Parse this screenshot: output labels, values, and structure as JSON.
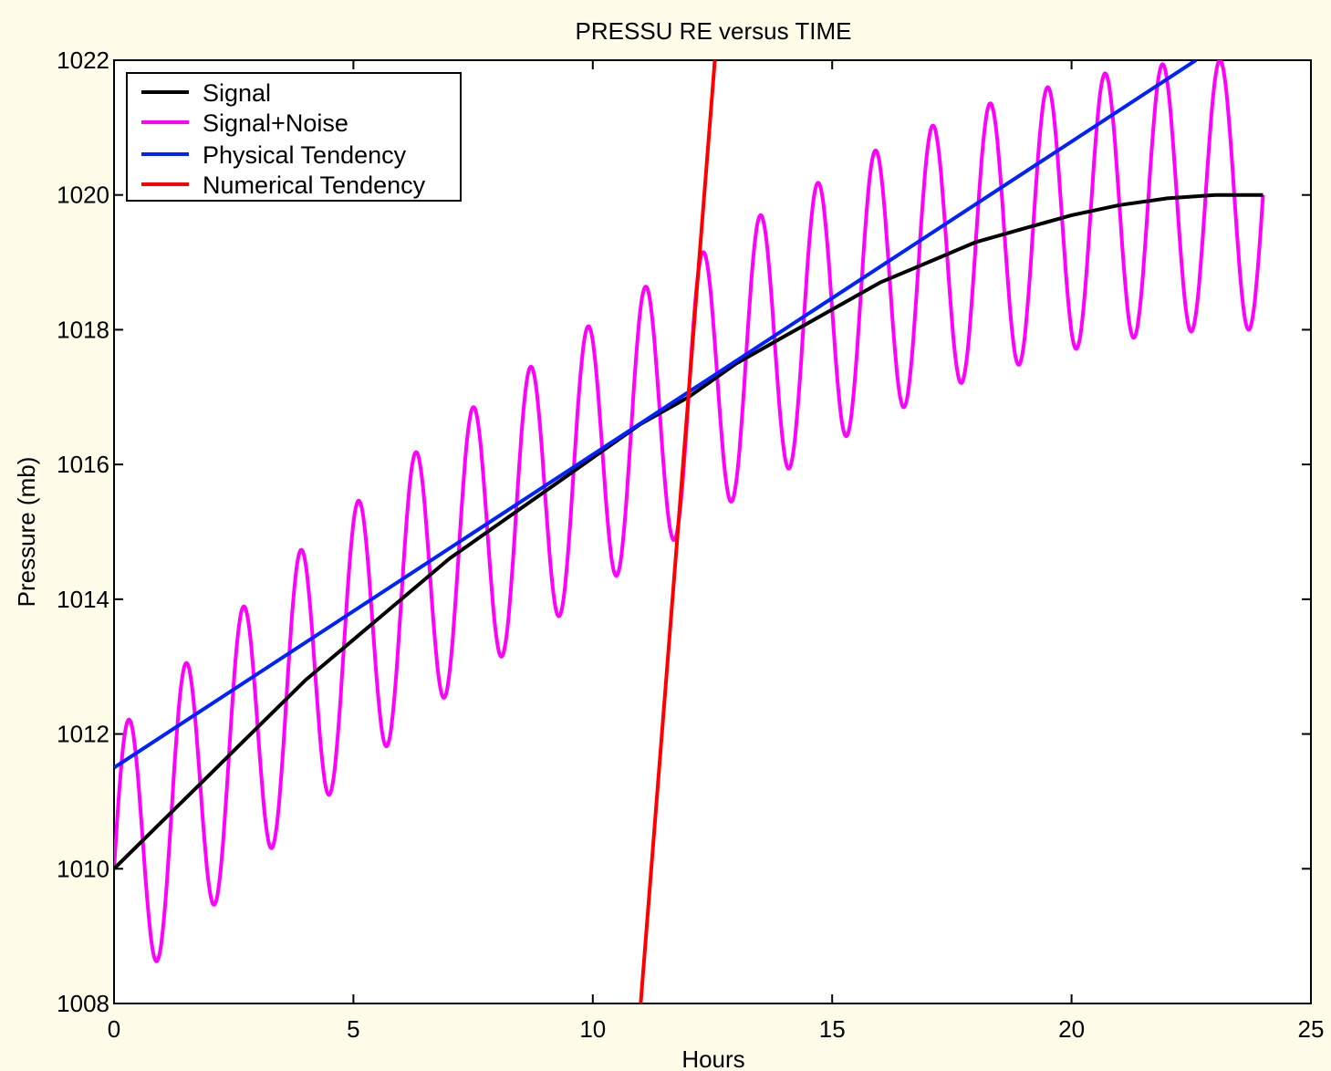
{
  "chart_data": {
    "type": "line",
    "title": "PRESSU RE versus TIME",
    "xlabel": "Hours",
    "ylabel": "Pressure (mb)",
    "xlim": [
      0,
      25
    ],
    "ylim": [
      1008,
      1022
    ],
    "xticks": [
      0,
      5,
      10,
      15,
      20,
      25
    ],
    "yticks": [
      1008,
      1010,
      1012,
      1014,
      1016,
      1018,
      1020,
      1022
    ],
    "grid": false,
    "legend_position": "top-left",
    "series": [
      {
        "name": "Signal",
        "color": "#000000",
        "x": [
          0,
          1,
          2,
          3,
          4,
          5,
          6,
          7,
          8,
          9,
          10,
          11,
          12,
          13,
          14,
          15,
          16,
          17,
          18,
          19,
          20,
          21,
          22,
          23,
          24
        ],
        "y": [
          1010.0,
          1010.7,
          1011.4,
          1012.1,
          1012.8,
          1013.4,
          1014.0,
          1014.6,
          1015.1,
          1015.6,
          1016.1,
          1016.6,
          1017.0,
          1017.5,
          1017.9,
          1018.3,
          1018.7,
          1019.0,
          1019.3,
          1019.5,
          1019.7,
          1019.85,
          1019.95,
          1020.0,
          1020.0
        ]
      },
      {
        "name": "Signal+Noise",
        "color": "#ff00ff",
        "noise_amplitude": 2,
        "noise_period_hours": 1.2
      },
      {
        "name": "Physical Tendency",
        "color": "#0022ff",
        "x": [
          0,
          22.6
        ],
        "y": [
          1011.5,
          1022.0
        ]
      },
      {
        "name": "Numerical Tendency",
        "color": "#ff0000",
        "x": [
          11.0,
          12.55
        ],
        "y": [
          1008.0,
          1022.0
        ]
      }
    ]
  }
}
